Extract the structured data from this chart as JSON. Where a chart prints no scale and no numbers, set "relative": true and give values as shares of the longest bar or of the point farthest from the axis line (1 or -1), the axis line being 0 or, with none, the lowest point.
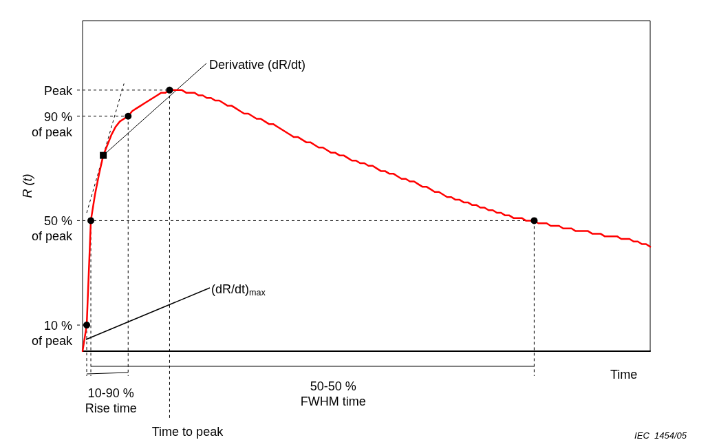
{
  "chart_data": {
    "type": "line",
    "relative": true,
    "ylabel": "R (t)",
    "xlabel": "Time",
    "categories": [
      null,
      null,
      null,
      null,
      null,
      null,
      null,
      null,
      null,
      null,
      null,
      null,
      null,
      null,
      null,
      null,
      null,
      null,
      null,
      null,
      null,
      null,
      null,
      null,
      null,
      null,
      null,
      null,
      null,
      null,
      null,
      null,
      null,
      null,
      null,
      null,
      null,
      null,
      null,
      null,
      null,
      null,
      null,
      null,
      null,
      null,
      null,
      null,
      null,
      null,
      null,
      null,
      null,
      null,
      null,
      null,
      null,
      null,
      null,
      null,
      null,
      null,
      null,
      null,
      null,
      null,
      null,
      null,
      null,
      null,
      null,
      null,
      null,
      null,
      null,
      null,
      null,
      null,
      null,
      null,
      null,
      null,
      null,
      null,
      null,
      null,
      null,
      null,
      null,
      null,
      null,
      null,
      null,
      null,
      null,
      null,
      null,
      null,
      null,
      null,
      null,
      null,
      null,
      null,
      null,
      null,
      null,
      null,
      null,
      null,
      null,
      null,
      null,
      null,
      null,
      null,
      null,
      null,
      null,
      null,
      null,
      null,
      null,
      null,
      null,
      null,
      null,
      null,
      null,
      null,
      null,
      null,
      null,
      null,
      null,
      null,
      null,
      null
    ],
    "series": [
      {
        "color": "#ff0000",
        "values": [
          0,
          0.1,
          0.5,
          0.6,
          0.68,
          0.75,
          0.79,
          0.83,
          0.86,
          0.88,
          0.89,
          0.9,
          0.92,
          0.93,
          0.94,
          0.95,
          0.96,
          0.97,
          0.98,
          0.99,
          0.99,
          1,
          1,
          1,
          1,
          0.99,
          0.99,
          0.99,
          0.98,
          0.98,
          0.97,
          0.97,
          0.96,
          0.96,
          0.95,
          0.94,
          0.94,
          0.93,
          0.92,
          0.91,
          0.91,
          0.9,
          0.89,
          0.89,
          0.88,
          0.87,
          0.87,
          0.86,
          0.85,
          0.84,
          0.83,
          0.82,
          0.82,
          0.81,
          0.8,
          0.8,
          0.79,
          0.78,
          0.78,
          0.77,
          0.76,
          0.76,
          0.75,
          0.75,
          0.74,
          0.73,
          0.73,
          0.72,
          0.72,
          0.71,
          0.71,
          0.7,
          0.69,
          0.69,
          0.68,
          0.68,
          0.67,
          0.66,
          0.66,
          0.65,
          0.65,
          0.64,
          0.63,
          0.63,
          0.62,
          0.61,
          0.61,
          0.6,
          0.59,
          0.59,
          0.58,
          0.58,
          0.57,
          0.57,
          0.56,
          0.56,
          0.55,
          0.55,
          0.54,
          0.54,
          0.53,
          0.53,
          0.52,
          0.52,
          0.51,
          0.51,
          0.51,
          0.5,
          0.5,
          0.5,
          0.49,
          0.49,
          0.49,
          0.48,
          0.48,
          0.48,
          0.47,
          0.47,
          0.47,
          0.46,
          0.46,
          0.46,
          0.46,
          0.45,
          0.45,
          0.45,
          0.44,
          0.44,
          0.44,
          0.44,
          0.43,
          0.43,
          0.43,
          0.42,
          0.42,
          0.41,
          0.41,
          0.4
        ]
      }
    ],
    "ref_lines": [
      {
        "axis": "y",
        "value": 1,
        "label": "Peak",
        "line_style": "dashed"
      },
      {
        "axis": "y",
        "value": 0.9,
        "label": "90 %\nof peak",
        "line_style": "dashed"
      },
      {
        "axis": "y",
        "value": 0.5,
        "label": "50 %\nof peak",
        "line_style": "dashed"
      },
      {
        "axis": "y",
        "value": 0.1,
        "label": "10 %\nof peak",
        "line_style": "dashed"
      }
    ],
    "annotations": [
      "Derivative (dR/dt)",
      "(dR/dt)$_{max}$",
      "10-90 %\nRise time",
      "50-50 %\nFWHM time",
      "Time to peak",
      "IEC  1454/05"
    ]
  }
}
